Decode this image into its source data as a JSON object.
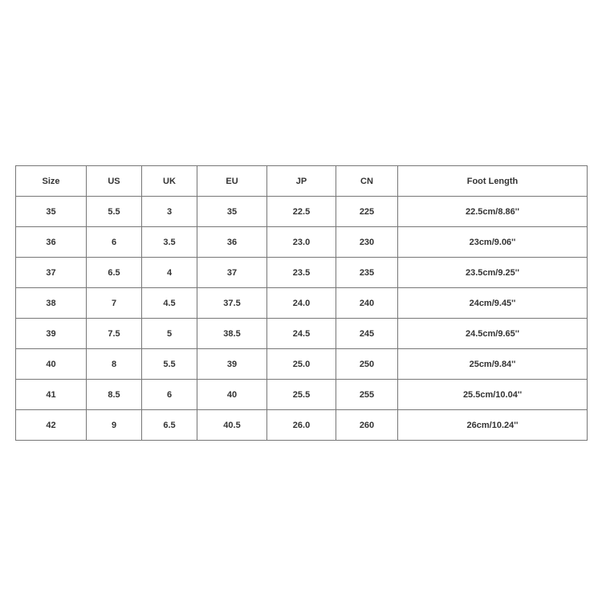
{
  "size_chart": {
    "headers": [
      "Size",
      "US",
      "UK",
      "EU",
      "JP",
      "CN",
      "Foot Length"
    ],
    "rows": [
      [
        "35",
        "5.5",
        "3",
        "35",
        "22.5",
        "225",
        "22.5cm/8.86''"
      ],
      [
        "36",
        "6",
        "3.5",
        "36",
        "23.0",
        "230",
        "23cm/9.06''"
      ],
      [
        "37",
        "6.5",
        "4",
        "37",
        "23.5",
        "235",
        "23.5cm/9.25''"
      ],
      [
        "38",
        "7",
        "4.5",
        "37.5",
        "24.0",
        "240",
        "24cm/9.45''"
      ],
      [
        "39",
        "7.5",
        "5",
        "38.5",
        "24.5",
        "245",
        "24.5cm/9.65''"
      ],
      [
        "40",
        "8",
        "5.5",
        "39",
        "25.0",
        "250",
        "25cm/9.84''"
      ],
      [
        "41",
        "8.5",
        "6",
        "40",
        "25.5",
        "255",
        "25.5cm/10.04''"
      ],
      [
        "42",
        "9",
        "6.5",
        "40.5",
        "26.0",
        "260",
        "26cm/10.24''"
      ]
    ]
  }
}
